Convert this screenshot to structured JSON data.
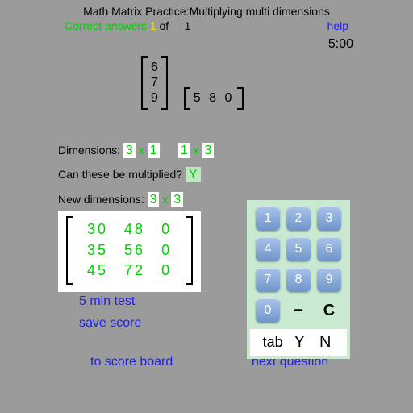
{
  "title": "Math Matrix Practice:Multiplying multi dimensions",
  "status": {
    "label": "Correct answers",
    "correct": "1",
    "of": "of",
    "total": "1"
  },
  "help_label": "help",
  "timer": "5:00",
  "matrix_a": {
    "rows": [
      "6",
      "7",
      "9"
    ]
  },
  "matrix_b": {
    "cols": [
      "5",
      "8",
      "0"
    ]
  },
  "dimensions_label": "Dimensions:",
  "dim_a": {
    "rows": "3",
    "x": "x",
    "cols": "1"
  },
  "dim_b": {
    "rows": "1",
    "x": "x",
    "cols": "3"
  },
  "multiply_q": "Can these be multiplied?",
  "multiply_ans": "Y",
  "new_dim_label": "New dimensions:",
  "new_dim": {
    "rows": "3",
    "x": "x",
    "cols": "3"
  },
  "result": {
    "rows": [
      [
        "30",
        "48",
        "0"
      ],
      [
        "35",
        "56",
        "0"
      ],
      [
        "45",
        "72",
        "0"
      ]
    ]
  },
  "links": {
    "five_min": "5 min test",
    "save_score": "save score",
    "to_scoreboard": "to score  board",
    "next_question": "next question"
  },
  "keypad": {
    "k1": "1",
    "k2": "2",
    "k3": "3",
    "k4": "4",
    "k5": "5",
    "k6": "6",
    "k7": "7",
    "k8": "8",
    "k9": "9",
    "k0": "0",
    "minus": "−",
    "clear": "C",
    "tab": "tab",
    "yes": "Y",
    "no": "N"
  },
  "colors": {
    "bg": "#9b9b9b",
    "green": "#00d000",
    "yellow": "#f5e400",
    "blue": "#2020f0",
    "keypad_bg": "#c9ead1",
    "key_top": "#a8c4ea",
    "key_bot": "#6f94c9"
  }
}
